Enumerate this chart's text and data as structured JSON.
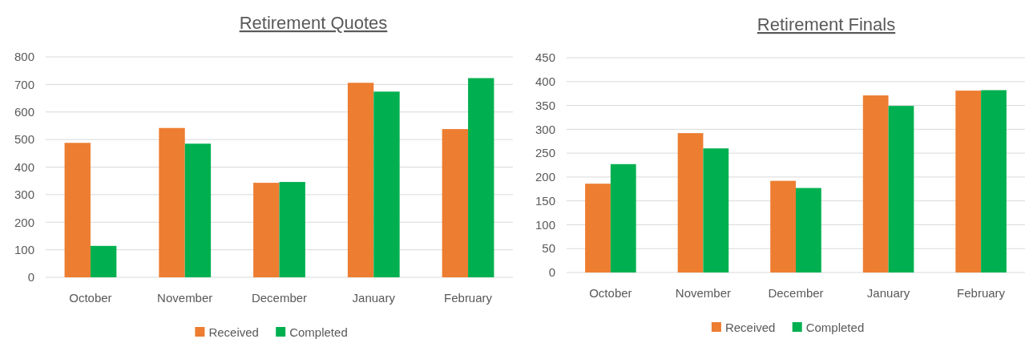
{
  "chart_data": [
    {
      "type": "bar",
      "title": "Retirement Quotes",
      "categories": [
        "October",
        "November",
        "December",
        "January",
        "February"
      ],
      "series": [
        {
          "name": "Received",
          "color": "#ed7d31",
          "values": [
            488,
            542,
            343,
            706,
            538
          ]
        },
        {
          "name": "Completed",
          "color": "#00b050",
          "values": [
            114,
            485,
            346,
            674,
            723
          ]
        }
      ],
      "ylim": [
        0,
        800
      ],
      "yticks": [
        0,
        100,
        200,
        300,
        400,
        500,
        600,
        700,
        800
      ],
      "grid": "y",
      "legend": "bottom"
    },
    {
      "type": "bar",
      "title": "Retirement Finals",
      "categories": [
        "October",
        "November",
        "December",
        "January",
        "February"
      ],
      "series": [
        {
          "name": "Received",
          "color": "#ed7d31",
          "values": [
            186,
            292,
            192,
            371,
            381
          ]
        },
        {
          "name": "Completed",
          "color": "#00b050",
          "values": [
            227,
            260,
            177,
            349,
            382
          ]
        }
      ],
      "ylim": [
        0,
        450
      ],
      "yticks": [
        0,
        50,
        100,
        150,
        200,
        250,
        300,
        350,
        400,
        450
      ],
      "grid": "y",
      "legend": "bottom"
    }
  ]
}
